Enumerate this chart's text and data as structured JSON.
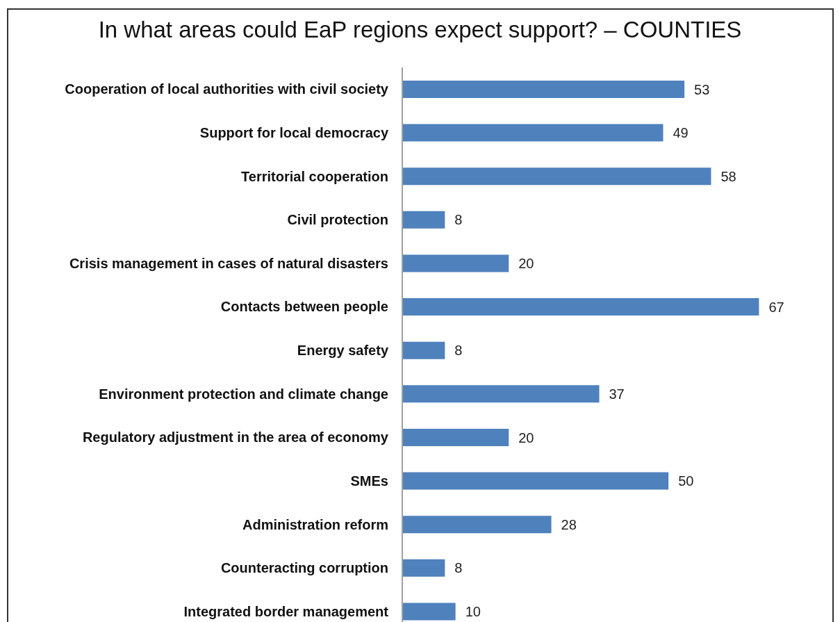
{
  "chart_data": {
    "type": "bar",
    "orientation": "horizontal",
    "title": "In what areas could EaP regions expect support? – COUNTIES",
    "categories": [
      "Cooperation of local authorities with civil society",
      "Support for local democracy",
      "Territorial cooperation",
      "Civil protection",
      "Crisis management in cases of natural disasters",
      "Contacts between people",
      "Energy safety",
      "Environment protection and climate change",
      "Regulatory adjustment in the area of economy",
      "SMEs",
      "Administration reform",
      "Counteracting corruption",
      "Integrated border management"
    ],
    "values": [
      53,
      49,
      58,
      8,
      20,
      67,
      8,
      37,
      20,
      50,
      28,
      8,
      10
    ],
    "color": "#4f81bd",
    "data_labels": true,
    "tick_labels": "y"
  }
}
